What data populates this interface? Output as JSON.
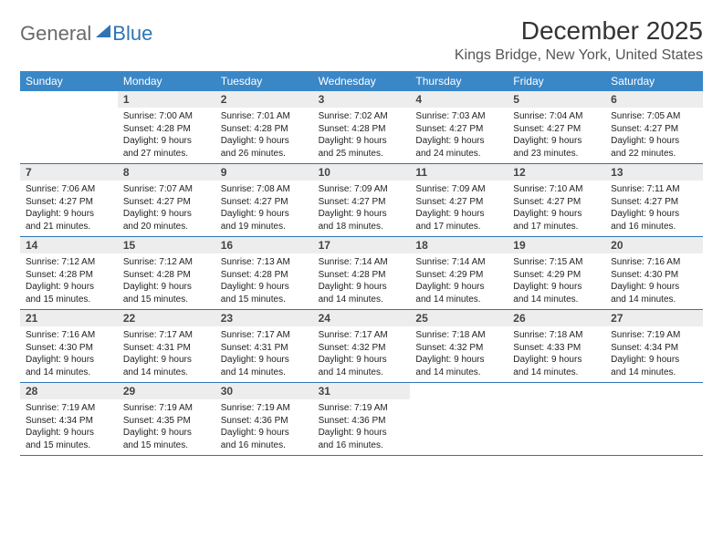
{
  "logo": {
    "part1": "General",
    "part2": "Blue"
  },
  "title": "December 2025",
  "location": "Kings Bridge, New York, United States",
  "colors": {
    "header_bg": "#3a87c8",
    "header_text": "#ffffff",
    "daynum_bg": "#ededed",
    "rule": "#2f74b5",
    "logo_gray": "#6a6a6a",
    "logo_blue": "#2f74b5"
  },
  "days_of_week": [
    "Sunday",
    "Monday",
    "Tuesday",
    "Wednesday",
    "Thursday",
    "Friday",
    "Saturday"
  ],
  "weeks": [
    [
      {
        "n": "",
        "empty": true
      },
      {
        "n": "1",
        "sunrise": "Sunrise: 7:00 AM",
        "sunset": "Sunset: 4:28 PM",
        "day1": "Daylight: 9 hours",
        "day2": "and 27 minutes."
      },
      {
        "n": "2",
        "sunrise": "Sunrise: 7:01 AM",
        "sunset": "Sunset: 4:28 PM",
        "day1": "Daylight: 9 hours",
        "day2": "and 26 minutes."
      },
      {
        "n": "3",
        "sunrise": "Sunrise: 7:02 AM",
        "sunset": "Sunset: 4:28 PM",
        "day1": "Daylight: 9 hours",
        "day2": "and 25 minutes."
      },
      {
        "n": "4",
        "sunrise": "Sunrise: 7:03 AM",
        "sunset": "Sunset: 4:27 PM",
        "day1": "Daylight: 9 hours",
        "day2": "and 24 minutes."
      },
      {
        "n": "5",
        "sunrise": "Sunrise: 7:04 AM",
        "sunset": "Sunset: 4:27 PM",
        "day1": "Daylight: 9 hours",
        "day2": "and 23 minutes."
      },
      {
        "n": "6",
        "sunrise": "Sunrise: 7:05 AM",
        "sunset": "Sunset: 4:27 PM",
        "day1": "Daylight: 9 hours",
        "day2": "and 22 minutes."
      }
    ],
    [
      {
        "n": "7",
        "sunrise": "Sunrise: 7:06 AM",
        "sunset": "Sunset: 4:27 PM",
        "day1": "Daylight: 9 hours",
        "day2": "and 21 minutes."
      },
      {
        "n": "8",
        "sunrise": "Sunrise: 7:07 AM",
        "sunset": "Sunset: 4:27 PM",
        "day1": "Daylight: 9 hours",
        "day2": "and 20 minutes."
      },
      {
        "n": "9",
        "sunrise": "Sunrise: 7:08 AM",
        "sunset": "Sunset: 4:27 PM",
        "day1": "Daylight: 9 hours",
        "day2": "and 19 minutes."
      },
      {
        "n": "10",
        "sunrise": "Sunrise: 7:09 AM",
        "sunset": "Sunset: 4:27 PM",
        "day1": "Daylight: 9 hours",
        "day2": "and 18 minutes."
      },
      {
        "n": "11",
        "sunrise": "Sunrise: 7:09 AM",
        "sunset": "Sunset: 4:27 PM",
        "day1": "Daylight: 9 hours",
        "day2": "and 17 minutes."
      },
      {
        "n": "12",
        "sunrise": "Sunrise: 7:10 AM",
        "sunset": "Sunset: 4:27 PM",
        "day1": "Daylight: 9 hours",
        "day2": "and 17 minutes."
      },
      {
        "n": "13",
        "sunrise": "Sunrise: 7:11 AM",
        "sunset": "Sunset: 4:27 PM",
        "day1": "Daylight: 9 hours",
        "day2": "and 16 minutes."
      }
    ],
    [
      {
        "n": "14",
        "sunrise": "Sunrise: 7:12 AM",
        "sunset": "Sunset: 4:28 PM",
        "day1": "Daylight: 9 hours",
        "day2": "and 15 minutes."
      },
      {
        "n": "15",
        "sunrise": "Sunrise: 7:12 AM",
        "sunset": "Sunset: 4:28 PM",
        "day1": "Daylight: 9 hours",
        "day2": "and 15 minutes."
      },
      {
        "n": "16",
        "sunrise": "Sunrise: 7:13 AM",
        "sunset": "Sunset: 4:28 PM",
        "day1": "Daylight: 9 hours",
        "day2": "and 15 minutes."
      },
      {
        "n": "17",
        "sunrise": "Sunrise: 7:14 AM",
        "sunset": "Sunset: 4:28 PM",
        "day1": "Daylight: 9 hours",
        "day2": "and 14 minutes."
      },
      {
        "n": "18",
        "sunrise": "Sunrise: 7:14 AM",
        "sunset": "Sunset: 4:29 PM",
        "day1": "Daylight: 9 hours",
        "day2": "and 14 minutes."
      },
      {
        "n": "19",
        "sunrise": "Sunrise: 7:15 AM",
        "sunset": "Sunset: 4:29 PM",
        "day1": "Daylight: 9 hours",
        "day2": "and 14 minutes."
      },
      {
        "n": "20",
        "sunrise": "Sunrise: 7:16 AM",
        "sunset": "Sunset: 4:30 PM",
        "day1": "Daylight: 9 hours",
        "day2": "and 14 minutes."
      }
    ],
    [
      {
        "n": "21",
        "sunrise": "Sunrise: 7:16 AM",
        "sunset": "Sunset: 4:30 PM",
        "day1": "Daylight: 9 hours",
        "day2": "and 14 minutes."
      },
      {
        "n": "22",
        "sunrise": "Sunrise: 7:17 AM",
        "sunset": "Sunset: 4:31 PM",
        "day1": "Daylight: 9 hours",
        "day2": "and 14 minutes."
      },
      {
        "n": "23",
        "sunrise": "Sunrise: 7:17 AM",
        "sunset": "Sunset: 4:31 PM",
        "day1": "Daylight: 9 hours",
        "day2": "and 14 minutes."
      },
      {
        "n": "24",
        "sunrise": "Sunrise: 7:17 AM",
        "sunset": "Sunset: 4:32 PM",
        "day1": "Daylight: 9 hours",
        "day2": "and 14 minutes."
      },
      {
        "n": "25",
        "sunrise": "Sunrise: 7:18 AM",
        "sunset": "Sunset: 4:32 PM",
        "day1": "Daylight: 9 hours",
        "day2": "and 14 minutes."
      },
      {
        "n": "26",
        "sunrise": "Sunrise: 7:18 AM",
        "sunset": "Sunset: 4:33 PM",
        "day1": "Daylight: 9 hours",
        "day2": "and 14 minutes."
      },
      {
        "n": "27",
        "sunrise": "Sunrise: 7:19 AM",
        "sunset": "Sunset: 4:34 PM",
        "day1": "Daylight: 9 hours",
        "day2": "and 14 minutes."
      }
    ],
    [
      {
        "n": "28",
        "sunrise": "Sunrise: 7:19 AM",
        "sunset": "Sunset: 4:34 PM",
        "day1": "Daylight: 9 hours",
        "day2": "and 15 minutes."
      },
      {
        "n": "29",
        "sunrise": "Sunrise: 7:19 AM",
        "sunset": "Sunset: 4:35 PM",
        "day1": "Daylight: 9 hours",
        "day2": "and 15 minutes."
      },
      {
        "n": "30",
        "sunrise": "Sunrise: 7:19 AM",
        "sunset": "Sunset: 4:36 PM",
        "day1": "Daylight: 9 hours",
        "day2": "and 16 minutes."
      },
      {
        "n": "31",
        "sunrise": "Sunrise: 7:19 AM",
        "sunset": "Sunset: 4:36 PM",
        "day1": "Daylight: 9 hours",
        "day2": "and 16 minutes."
      },
      {
        "n": "",
        "empty": true
      },
      {
        "n": "",
        "empty": true
      },
      {
        "n": "",
        "empty": true
      }
    ]
  ]
}
